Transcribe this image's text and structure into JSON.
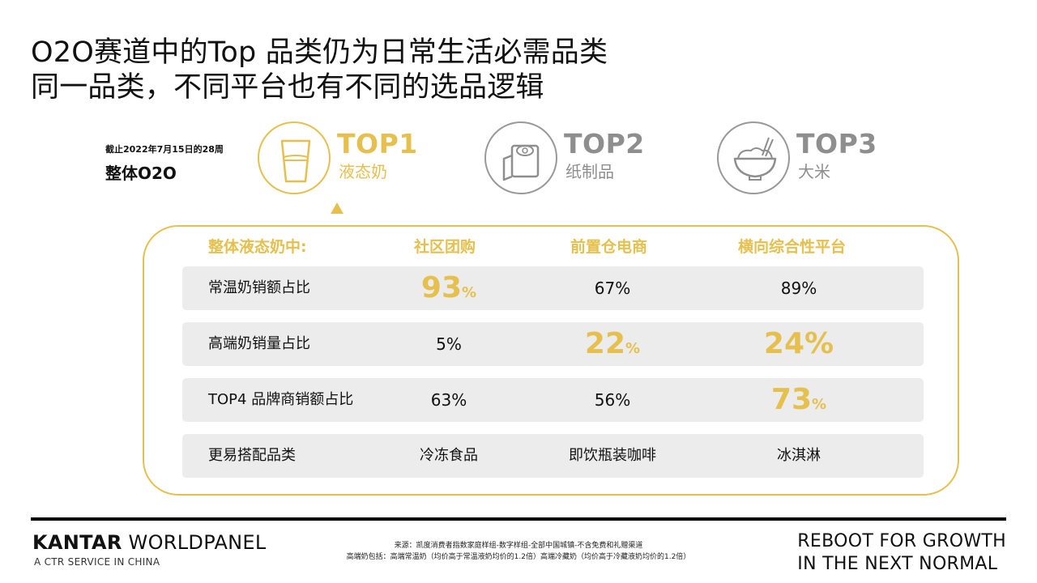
{
  "title": {
    "line1": "O2O赛道中的Top 品类仍为日常生活必需品类",
    "line2": "同一品类，不同平台也有不同的选品逻辑"
  },
  "period": {
    "sub": "截止2022年7月15日的28周",
    "main": "整体O2O"
  },
  "tops": [
    {
      "rank": "TOP1",
      "name": "液态奶",
      "icon": "milk-glass-icon",
      "highlight": true
    },
    {
      "rank": "TOP2",
      "name": "纸制品",
      "icon": "toilet-paper-icon",
      "highlight": false
    },
    {
      "rank": "TOP3",
      "name": "大米",
      "icon": "rice-bowl-icon",
      "highlight": false
    }
  ],
  "table": {
    "headers": [
      "整体液态奶中:",
      "社区团购",
      "前置仓电商",
      "横向综合性平台"
    ],
    "rows": [
      {
        "label": "常温奶销额占比",
        "values": [
          {
            "num": "93",
            "unit": "%",
            "highlight": true
          },
          {
            "num": "67",
            "unit": "%",
            "highlight": false
          },
          {
            "num": "89",
            "unit": "%",
            "highlight": false
          }
        ]
      },
      {
        "label": "高端奶销量占比",
        "values": [
          {
            "num": "5",
            "unit": "%",
            "highlight": false
          },
          {
            "num": "22",
            "unit": "%",
            "highlight": true
          },
          {
            "num": "24%",
            "unit": "",
            "highlight": true
          }
        ]
      },
      {
        "label": "TOP4 品牌商销额占比",
        "values": [
          {
            "num": "63",
            "unit": "%",
            "highlight": false
          },
          {
            "num": "56",
            "unit": "%",
            "highlight": false
          },
          {
            "num": "73",
            "unit": "%",
            "highlight": true
          }
        ]
      },
      {
        "label": "更易搭配品类",
        "values": [
          {
            "text": "冷冻食品"
          },
          {
            "text": "即饮瓶装咖啡"
          },
          {
            "text": "冰淇淋"
          }
        ]
      }
    ]
  },
  "footer": {
    "brand_bold": "KANTAR",
    "brand_rest": " WORLDPANEL",
    "brand_sub": "A CTR SERVICE IN CHINA",
    "source_line1": "来源：凯度消费者指数家庭样组-数字样组-全部中国城镇-不含免费和礼赠渠道",
    "source_line2": "高端奶包括：高端常温奶（均价高于常温液奶均价的1.2倍）高端冷藏奶（均价高于冷藏液奶均价的1.2倍）",
    "reboot_line1": "REBOOT FOR GROWTH",
    "reboot_line2": "IN THE NEXT NORMAL"
  },
  "colors": {
    "accent_gold": "#E6C04F",
    "muted_gray": "#8e8e8e",
    "row_bg": "#ececec"
  }
}
